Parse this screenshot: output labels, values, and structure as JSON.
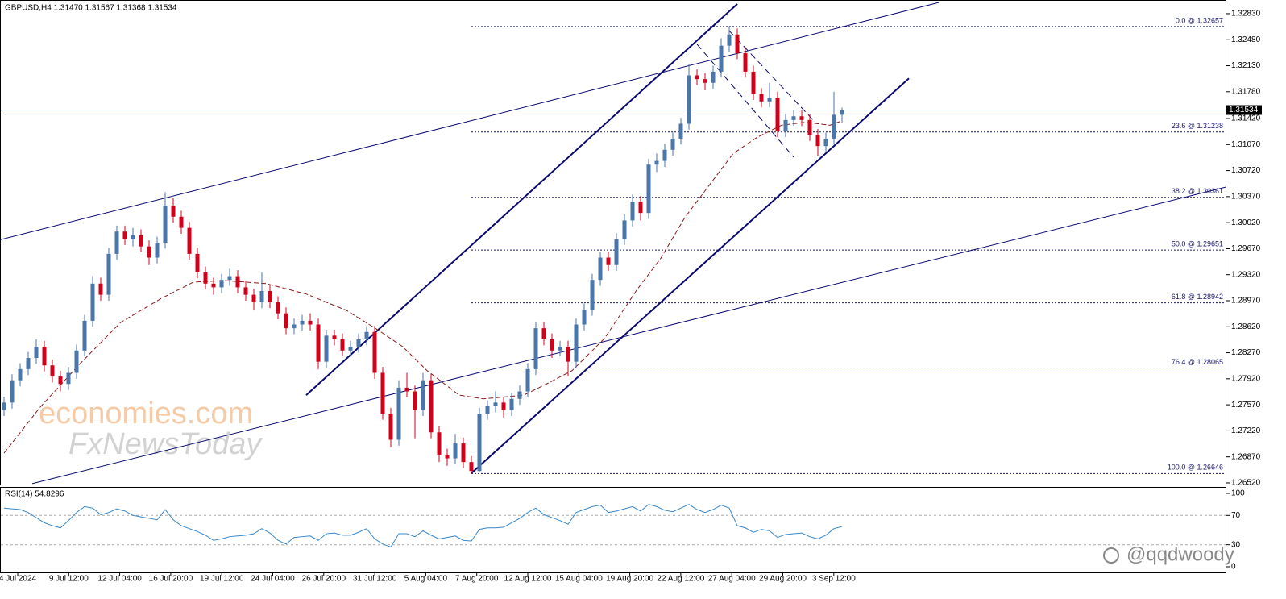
{
  "chart_data": {
    "type": "candlestick",
    "title": "GBPUSD,H4  1.31470 1.31567 1.31368 1.31534",
    "xlim": [
      -0.5,
      151.7
    ],
    "ylim": [
      1.26498,
      1.33014
    ],
    "yticks": [
      {
        "value": 1.3283,
        "label": "1.32830"
      },
      {
        "value": 1.3248,
        "label": "1.32480"
      },
      {
        "value": 1.3213,
        "label": "1.32130"
      },
      {
        "value": 1.3178,
        "label": "1.31780"
      },
      {
        "value": 1.3142,
        "label": "1.31420"
      },
      {
        "value": 1.3107,
        "label": "1.31070"
      },
      {
        "value": 1.3072,
        "label": "1.30720"
      },
      {
        "value": 1.3037,
        "label": "1.30370"
      },
      {
        "value": 1.3002,
        "label": "1.30020"
      },
      {
        "value": 1.2967,
        "label": "1.29670"
      },
      {
        "value": 1.2932,
        "label": "1.29320"
      },
      {
        "value": 1.2897,
        "label": "1.28970"
      },
      {
        "value": 1.2862,
        "label": "1.28620"
      },
      {
        "value": 1.2827,
        "label": "1.28270"
      },
      {
        "value": 1.2792,
        "label": "1.27920"
      },
      {
        "value": 1.2757,
        "label": "1.27570"
      },
      {
        "value": 1.2722,
        "label": "1.27220"
      },
      {
        "value": 1.2687,
        "label": "1.26870"
      },
      {
        "value": 1.2652,
        "label": "1.26520"
      }
    ],
    "xlabels": [
      "4 Jul 2024",
      "9 Jul 12:00",
      "12 Jul 04:00",
      "16 Jul 20:00",
      "19 Jul 12:00",
      "24 Jul 04:00",
      "26 Jul 20:00",
      "31 Jul 12:00",
      "5 Aug 04:00",
      "7 Aug 20:00",
      "12 Aug 12:00",
      "15 Aug 04:00",
      "19 Aug 20:00",
      "22 Aug 12:00",
      "27 Aug 04:00",
      "29 Aug 20:00",
      "3 Sep 12:00"
    ],
    "up_color": "#4a76a8",
    "down_color": "#d0021b",
    "last_price": 1.31534,
    "candles": {
      "open": [
        1.275,
        1.276,
        1.279,
        1.2805,
        1.282,
        1.2835,
        1.281,
        1.2795,
        1.2785,
        1.28,
        1.283,
        1.287,
        1.292,
        1.2905,
        1.296,
        1.299,
        1.298,
        1.2985,
        1.297,
        1.2955,
        1.2975,
        1.3025,
        1.301,
        1.2995,
        1.296,
        1.2935,
        1.292,
        1.2915,
        1.2925,
        1.293,
        1.2915,
        1.2905,
        1.2895,
        1.291,
        1.2895,
        1.288,
        1.286,
        1.2865,
        1.287,
        1.2865,
        1.2815,
        1.285,
        1.2845,
        1.283,
        1.2835,
        1.2845,
        1.2855,
        1.28,
        1.2745,
        1.271,
        1.278,
        1.2775,
        1.275,
        1.279,
        1.272,
        1.269,
        1.2685,
        1.2705,
        1.268,
        1.2668,
        1.2745,
        1.2755,
        1.276,
        1.275,
        1.2765,
        1.2775,
        1.2805,
        1.286,
        1.2845,
        1.283,
        1.2835,
        1.2815,
        1.2865,
        1.2885,
        1.2925,
        1.2955,
        1.2945,
        1.298,
        1.3005,
        1.303,
        1.3015,
        1.308,
        1.3085,
        1.31,
        1.3115,
        1.3135,
        1.32,
        1.3195,
        1.319,
        1.3205,
        1.324,
        1.3255,
        1.323,
        1.3205,
        1.3175,
        1.3165,
        1.317,
        1.3125,
        1.314,
        1.3145,
        1.314,
        1.312,
        1.3105,
        1.3115,
        1.3147
      ],
      "high": [
        1.2768,
        1.2798,
        1.2813,
        1.2828,
        1.2845,
        1.2843,
        1.2818,
        1.2803,
        1.2808,
        1.2838,
        1.2878,
        1.293,
        1.2928,
        1.2968,
        1.2998,
        1.2998,
        1.2995,
        1.2993,
        1.2978,
        1.2983,
        1.3043,
        1.3035,
        1.3018,
        1.3003,
        1.2968,
        1.2943,
        1.2928,
        1.2933,
        1.294,
        1.2938,
        1.2923,
        1.2913,
        1.2935,
        1.2918,
        1.2903,
        1.2888,
        1.2873,
        1.2878,
        1.288,
        1.2873,
        1.2858,
        1.2858,
        1.2853,
        1.2843,
        1.2853,
        1.2863,
        1.2863,
        1.2808,
        1.2753,
        1.279,
        1.28,
        1.2783,
        1.28,
        1.2798,
        1.2728,
        1.2698,
        1.2718,
        1.2713,
        1.2688,
        1.2753,
        1.2763,
        1.2775,
        1.2768,
        1.2773,
        1.2783,
        1.2813,
        1.2868,
        1.2868,
        1.2853,
        1.2843,
        1.2843,
        1.2873,
        1.2893,
        1.2933,
        1.2963,
        1.2963,
        1.2988,
        1.3013,
        1.304,
        1.3038,
        1.3088,
        1.3095,
        1.3108,
        1.3123,
        1.3143,
        1.3215,
        1.3208,
        1.3203,
        1.3213,
        1.325,
        1.3266,
        1.3263,
        1.3238,
        1.3213,
        1.3183,
        1.319,
        1.3178,
        1.3148,
        1.3153,
        1.3153,
        1.3148,
        1.3128,
        1.3123,
        1.3178,
        1.31567
      ],
      "low": [
        1.2742,
        1.2752,
        1.2782,
        1.2797,
        1.2812,
        1.2802,
        1.2787,
        1.2775,
        1.2777,
        1.2792,
        1.2822,
        1.2862,
        1.2897,
        1.2897,
        1.2952,
        1.2972,
        1.297,
        1.2962,
        1.2945,
        1.2947,
        1.2967,
        1.3002,
        1.2987,
        1.2952,
        1.2927,
        1.2912,
        1.2905,
        1.2907,
        1.2917,
        1.2907,
        1.2897,
        1.2885,
        1.2887,
        1.2887,
        1.2872,
        1.2852,
        1.2852,
        1.2857,
        1.2857,
        1.2805,
        1.2807,
        1.2837,
        1.2822,
        1.2822,
        1.2827,
        1.2837,
        1.2792,
        1.2737,
        1.27,
        1.2702,
        1.2767,
        1.2712,
        1.2742,
        1.2712,
        1.268,
        1.2675,
        1.2677,
        1.2672,
        1.2664,
        1.2666,
        1.2737,
        1.2747,
        1.274,
        1.2742,
        1.2757,
        1.2767,
        1.2797,
        1.2837,
        1.282,
        1.2822,
        1.2795,
        1.2807,
        1.2857,
        1.2877,
        1.2917,
        1.2937,
        1.2937,
        1.2972,
        1.2997,
        1.3005,
        1.3007,
        1.307,
        1.3077,
        1.3092,
        1.3107,
        1.3127,
        1.3187,
        1.318,
        1.3182,
        1.3197,
        1.3232,
        1.3222,
        1.3197,
        1.3167,
        1.3157,
        1.3157,
        1.3117,
        1.3117,
        1.3132,
        1.3132,
        1.3112,
        1.3092,
        1.3097,
        1.3107,
        1.31368
      ],
      "close": [
        1.276,
        1.279,
        1.2805,
        1.282,
        1.2835,
        1.281,
        1.2795,
        1.2785,
        1.28,
        1.283,
        1.287,
        1.292,
        1.2905,
        1.296,
        1.299,
        1.298,
        1.2985,
        1.297,
        1.2955,
        1.2975,
        1.3025,
        1.301,
        1.2995,
        1.296,
        1.2935,
        1.292,
        1.2915,
        1.2925,
        1.293,
        1.2915,
        1.2905,
        1.2895,
        1.291,
        1.2895,
        1.288,
        1.286,
        1.2865,
        1.287,
        1.2865,
        1.2815,
        1.285,
        1.2845,
        1.283,
        1.2835,
        1.2845,
        1.2855,
        1.28,
        1.2745,
        1.271,
        1.278,
        1.2775,
        1.275,
        1.279,
        1.272,
        1.269,
        1.2685,
        1.2705,
        1.268,
        1.2668,
        1.2745,
        1.2755,
        1.276,
        1.275,
        1.2765,
        1.2775,
        1.2805,
        1.286,
        1.2845,
        1.283,
        1.2835,
        1.2815,
        1.2865,
        1.2885,
        1.2925,
        1.2955,
        1.2945,
        1.298,
        1.3005,
        1.303,
        1.3015,
        1.308,
        1.3085,
        1.31,
        1.3115,
        1.3135,
        1.32,
        1.3195,
        1.319,
        1.3205,
        1.324,
        1.3255,
        1.323,
        1.3205,
        1.3175,
        1.3165,
        1.317,
        1.3125,
        1.314,
        1.3145,
        1.314,
        1.312,
        1.3105,
        1.3115,
        1.3147,
        1.31534
      ]
    },
    "moving_average": {
      "color": "#8b1a1a",
      "x": [
        0,
        4.5,
        9.5,
        14.5,
        19.5,
        23.5,
        27.5,
        32.5,
        37.5,
        42.5,
        46.5,
        49.5,
        52.5,
        56.5,
        59.5,
        64.5,
        67.5,
        70.5,
        74.5,
        78.5,
        81.5,
        84.5,
        87.5,
        90.5,
        93.5,
        96.5,
        99.5,
        102.5,
        104
      ],
      "values": [
        1.2692,
        1.2754,
        1.2813,
        1.2868,
        1.29,
        1.2922,
        1.2924,
        1.292,
        1.2906,
        1.2884,
        1.2857,
        1.2835,
        1.2803,
        1.277,
        1.2765,
        1.277,
        1.2786,
        1.2803,
        1.2846,
        1.2911,
        1.2954,
        1.3009,
        1.3052,
        1.3095,
        1.3117,
        1.3133,
        1.3137,
        1.3133,
        1.3139
      ]
    },
    "trendlines": [
      {
        "width": 1,
        "dash": false,
        "x": [
          -0.5,
          116
        ],
        "y": [
          1.2979,
          1.3298
        ]
      },
      {
        "width": 1,
        "dash": false,
        "x": [
          3.5,
          151.7
        ],
        "y": [
          1.2651,
          1.305
        ]
      },
      {
        "width": 2,
        "dash": false,
        "x": [
          37.5,
          91
        ],
        "y": [
          1.277,
          1.3296
        ]
      },
      {
        "width": 2,
        "dash": false,
        "x": [
          58,
          112.3
        ],
        "y": [
          1.2665,
          1.3196
        ]
      },
      {
        "width": 1,
        "dash": true,
        "x": [
          90,
          100.5
        ],
        "y": [
          1.326,
          1.3139
        ]
      },
      {
        "width": 1,
        "dash": true,
        "x": [
          86,
          98
        ],
        "y": [
          1.3242,
          1.309
        ]
      }
    ],
    "fibonacci": [
      {
        "price": 1.32657,
        "label": "0.0 @ 1.32657"
      },
      {
        "price": 1.31238,
        "label": "23.6 @ 1.31238"
      },
      {
        "price": 1.30361,
        "label": "38.2 @ 1.30361"
      },
      {
        "price": 1.29651,
        "label": "50.0 @ 1.29651"
      },
      {
        "price": 1.28942,
        "label": "61.8 @ 1.28942"
      },
      {
        "price": 1.28065,
        "label": "76.4 @ 1.28065"
      },
      {
        "price": 1.26646,
        "label": "100.0 @ 1.26646"
      }
    ],
    "rsi": {
      "title": "RSI(14) 54.8296",
      "color": "#3a87c8",
      "ylim": [
        -7.7,
        108.8
      ],
      "yticks": [
        100,
        70,
        30,
        0
      ],
      "levels": [
        70,
        30
      ],
      "values": [
        80,
        79,
        78,
        74,
        67,
        60,
        56,
        53,
        63,
        74,
        82,
        80,
        71,
        74,
        79,
        76,
        70,
        68,
        66,
        64,
        78,
        64,
        56,
        52,
        48,
        43,
        36,
        38,
        41,
        42,
        43,
        45,
        52,
        46,
        36,
        31,
        40,
        41,
        42,
        36,
        45,
        46,
        43,
        43,
        47,
        52,
        38,
        31,
        27,
        45,
        45,
        41,
        49,
        43,
        38,
        40,
        42,
        36,
        35,
        51,
        53,
        53,
        54,
        60,
        66,
        74,
        80,
        71,
        67,
        63,
        58,
        74,
        78,
        82,
        84,
        74,
        76,
        79,
        82,
        76,
        85,
        82,
        77,
        75,
        80,
        85,
        78,
        74,
        78,
        84,
        80,
        56,
        53,
        47,
        51,
        49,
        40,
        44,
        45,
        46,
        41,
        38,
        43,
        52,
        54.8296
      ]
    },
    "watermarks": [
      "economies.com",
      "FxNewsToday",
      "@qqdwoody"
    ]
  }
}
